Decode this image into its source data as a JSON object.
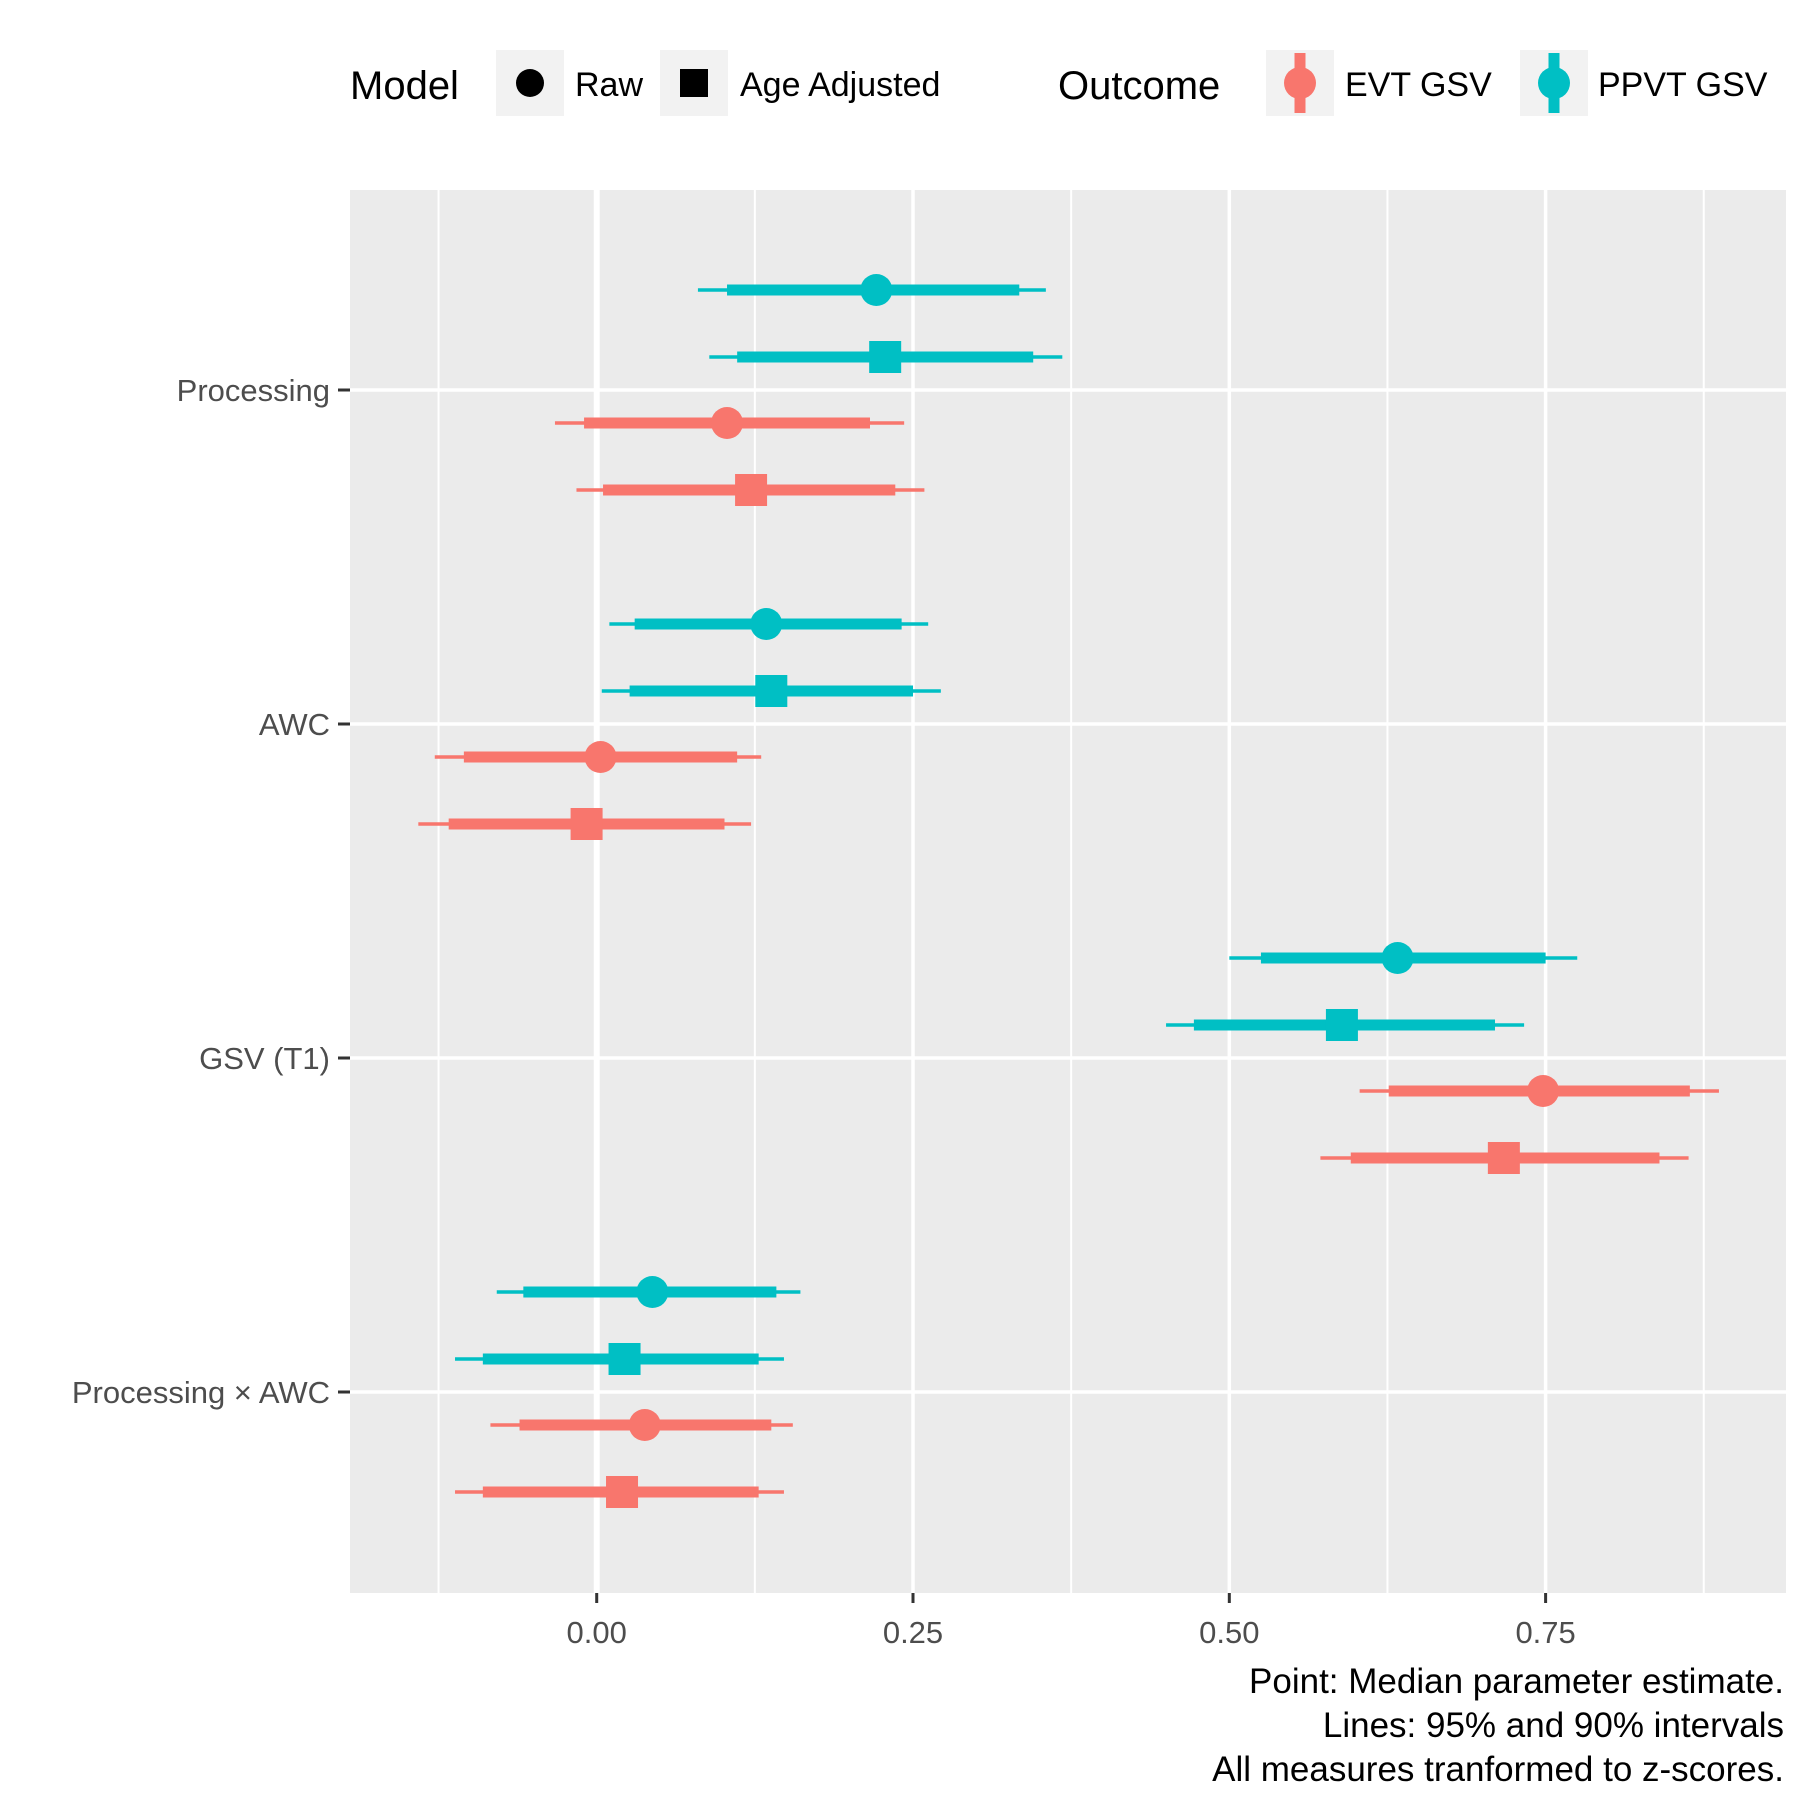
{
  "chart_data": {
    "type": "forest",
    "x": {
      "ticks": [
        0,
        0.25,
        0.5,
        0.75
      ],
      "tick_labels": [
        "0.00",
        "0.25",
        "0.50",
        "0.75"
      ],
      "minor_ticks": [
        -0.125,
        0.125,
        0.375,
        0.625,
        0.875
      ],
      "range": [
        -0.195,
        0.94
      ],
      "zero_line": 0
    },
    "terms": [
      "Processing",
      "AWC",
      "GSV (T1)",
      "Processing × AWC"
    ],
    "series": [
      {
        "outcome": "PPVT GSV",
        "model": "Raw",
        "estimates": [
          {
            "term": "Processing",
            "median": 0.221,
            "inner": [
              0.103,
              0.334
            ],
            "outer": [
              0.08,
              0.355
            ]
          },
          {
            "term": "AWC",
            "median": 0.134,
            "inner": [
              0.03,
              0.241
            ],
            "outer": [
              0.01,
              0.262
            ]
          },
          {
            "term": "GSV (T1)",
            "median": 0.633,
            "inner": [
              0.525,
              0.75
            ],
            "outer": [
              0.5,
              0.775
            ]
          },
          {
            "term": "Processing × AWC",
            "median": 0.044,
            "inner": [
              -0.058,
              0.142
            ],
            "outer": [
              -0.079,
              0.161
            ]
          }
        ]
      },
      {
        "outcome": "PPVT GSV",
        "model": "Age Adjusted",
        "estimates": [
          {
            "term": "Processing",
            "median": 0.228,
            "inner": [
              0.111,
              0.345
            ],
            "outer": [
              0.089,
              0.368
            ]
          },
          {
            "term": "AWC",
            "median": 0.138,
            "inner": [
              0.026,
              0.25
            ],
            "outer": [
              0.004,
              0.272
            ]
          },
          {
            "term": "GSV (T1)",
            "median": 0.589,
            "inner": [
              0.472,
              0.71
            ],
            "outer": [
              0.45,
              0.733
            ]
          },
          {
            "term": "Processing × AWC",
            "median": 0.022,
            "inner": [
              -0.09,
              0.128
            ],
            "outer": [
              -0.112,
              0.148
            ]
          }
        ]
      },
      {
        "outcome": "EVT GSV",
        "model": "Raw",
        "estimates": [
          {
            "term": "Processing",
            "median": 0.103,
            "inner": [
              -0.01,
              0.216
            ],
            "outer": [
              -0.033,
              0.243
            ]
          },
          {
            "term": "AWC",
            "median": 0.003,
            "inner": [
              -0.105,
              0.111
            ],
            "outer": [
              -0.128,
              0.13
            ]
          },
          {
            "term": "GSV (T1)",
            "median": 0.748,
            "inner": [
              0.626,
              0.864
            ],
            "outer": [
              0.603,
              0.887
            ]
          },
          {
            "term": "Processing × AWC",
            "median": 0.038,
            "inner": [
              -0.061,
              0.138
            ],
            "outer": [
              -0.084,
              0.155
            ]
          }
        ]
      },
      {
        "outcome": "EVT GSV",
        "model": "Age Adjusted",
        "estimates": [
          {
            "term": "Processing",
            "median": 0.122,
            "inner": [
              0.005,
              0.236
            ],
            "outer": [
              -0.016,
              0.259
            ]
          },
          {
            "term": "AWC",
            "median": -0.008,
            "inner": [
              -0.117,
              0.101
            ],
            "outer": [
              -0.141,
              0.122
            ]
          },
          {
            "term": "GSV (T1)",
            "median": 0.717,
            "inner": [
              0.596,
              0.84
            ],
            "outer": [
              0.572,
              0.863
            ]
          },
          {
            "term": "Processing × AWC",
            "median": 0.02,
            "inner": [
              -0.09,
              0.128
            ],
            "outer": [
              -0.112,
              0.148
            ]
          }
        ]
      }
    ],
    "legend": {
      "placement": "top",
      "model": {
        "title": "Model",
        "entries": [
          {
            "label": "Raw",
            "shape": "circle"
          },
          {
            "label": "Age Adjusted",
            "shape": "square"
          }
        ]
      },
      "outcome": {
        "title": "Outcome",
        "entries": [
          {
            "label": "EVT GSV",
            "color": "#F8766D"
          },
          {
            "label": "PPVT GSV",
            "color": "#00BFC4"
          }
        ]
      }
    },
    "caption": [
      "Point: Median parameter estimate.",
      "Lines: 95% and 90% intervals",
      "All measures tranformed to z-scores."
    ],
    "colors": {
      "EVT GSV": "#F8766D",
      "PPVT GSV": "#00BFC4",
      "panel": "#EBEBEB",
      "grid": "#FFFFFF"
    },
    "grid": true
  }
}
